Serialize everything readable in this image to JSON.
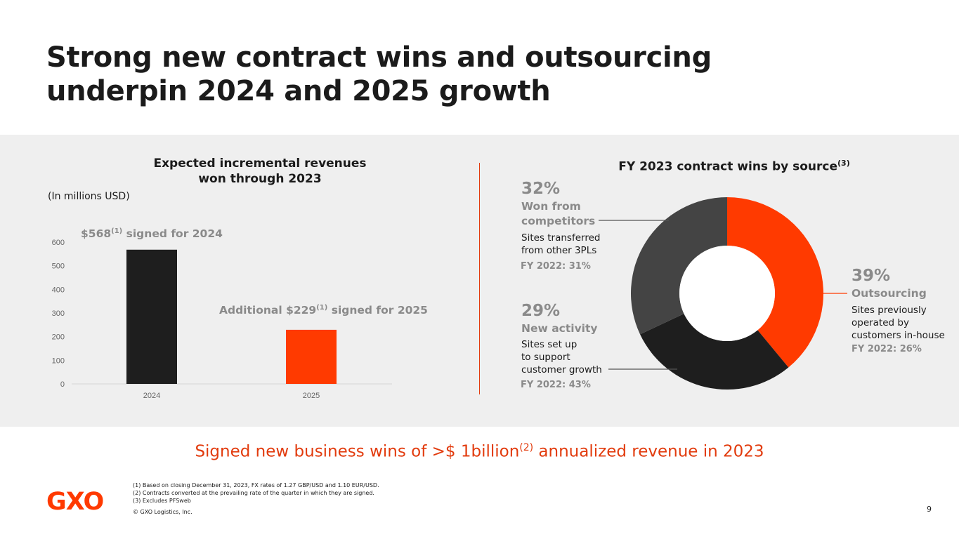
{
  "title_line1": "Strong new contract wins and outsourcing",
  "title_line2": "underpin 2024 and 2025 growth",
  "colors": {
    "accent": "#ff3a00",
    "dark": "#1e1e1e",
    "mid": "#444444",
    "muted": "#8a8a8a",
    "panel": "#efefef"
  },
  "chart_data": [
    {
      "type": "bar",
      "title_line1": "Expected incremental revenues",
      "title_line2": "won through 2023",
      "units_note": "(In millions USD)",
      "categories": [
        "2024",
        "2025"
      ],
      "values": [
        568,
        229
      ],
      "bar_colors": [
        "#1e1e1e",
        "#ff3a00"
      ],
      "ylim": [
        0,
        600
      ],
      "yticks": [
        "0",
        "100",
        "200",
        "300",
        "400",
        "500",
        "600"
      ],
      "annotations": [
        {
          "prefix": "$568",
          "sup": "(1)",
          "suffix": " signed for 2024"
        },
        {
          "prefix": "Additional $229",
          "sup": "(1)",
          "suffix": " signed for 2025"
        }
      ]
    },
    {
      "type": "pie",
      "title": "FY 2023 contract wins by source",
      "title_sup": "(3)",
      "slices": [
        {
          "pct_label": "39%",
          "value": 39,
          "label": "Outsourcing",
          "desc_lines": [
            "Sites previously",
            "operated by",
            "customers in-house"
          ],
          "prior": "FY 2022: 26%",
          "color": "#ff3a00"
        },
        {
          "pct_label": "29%",
          "value": 29,
          "label": "New activity",
          "desc_lines": [
            "Sites set up",
            "to support",
            "customer growth"
          ],
          "prior": "FY 2022: 43%",
          "color": "#1e1e1e"
        },
        {
          "pct_label": "32%",
          "value": 32,
          "label_lines": [
            "Won from",
            "competitors"
          ],
          "desc_lines": [
            "Sites transferred",
            "from other 3PLs"
          ],
          "prior": "FY 2022: 31%",
          "color": "#444444"
        }
      ]
    }
  ],
  "tagline": {
    "prefix": "Signed new business wins of >$ 1billion",
    "sup": "(2)",
    "suffix": " annualized revenue in 2023"
  },
  "logo": "GXO",
  "footnotes": [
    "(1) Based on closing December 31, 2023, FX rates of 1.27 GBP/USD and 1.10 EUR/USD.",
    "(2) Contracts converted at the prevailing rate of the quarter in which they are signed.",
    "(3) Excludes PFSweb"
  ],
  "copyright": "© GXO Logistics, Inc.",
  "page_number": "9"
}
